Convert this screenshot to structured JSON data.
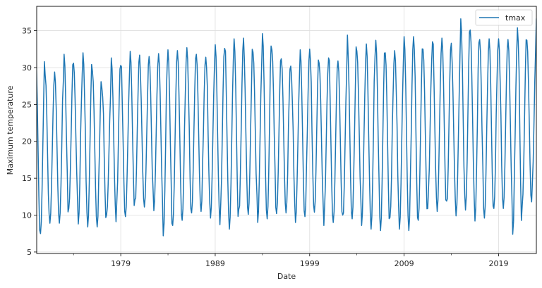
{
  "chart_data": {
    "type": "line",
    "title": "",
    "xlabel": "Date",
    "ylabel": "Maximum temperature",
    "xlim": [
      1970.1,
      2023.0
    ],
    "ylim": [
      4.8,
      38.3
    ],
    "grid": true,
    "legend_position": "upper right",
    "x_ticks": [
      1979,
      1989,
      1999,
      2009,
      2019
    ],
    "x_tick_labels": [
      "1979",
      "1989",
      "1999",
      "2009",
      "2019"
    ],
    "x_minor_ticks": [
      1974,
      1984,
      1994,
      2004,
      2014
    ],
    "y_ticks": [
      5,
      10,
      15,
      20,
      25,
      30,
      35
    ],
    "y_tick_labels": [
      "5",
      "10",
      "15",
      "20",
      "25",
      "30",
      "35"
    ],
    "series": [
      {
        "name": "tmax",
        "color": "#1f77b4",
        "frequency": "monthly",
        "years": [
          1970,
          1971,
          1972,
          1973,
          1974,
          1975,
          1976,
          1977,
          1978,
          1979,
          1980,
          1981,
          1982,
          1983,
          1984,
          1985,
          1986,
          1987,
          1988,
          1989,
          1990,
          1991,
          1992,
          1993,
          1994,
          1995,
          1996,
          1997,
          1998,
          1999,
          2000,
          2001,
          2002,
          2003,
          2004,
          2005,
          2006,
          2007,
          2008,
          2009,
          2010,
          2011,
          2012,
          2013,
          2014,
          2015,
          2016,
          2017,
          2018,
          2019,
          2020,
          2021,
          2022,
          2023
        ],
        "annual_peak": [
          31.2,
          29.0,
          29.4,
          31.8,
          30.6,
          32.0,
          29.5,
          27.3,
          31.3,
          30.3,
          32.2,
          30.5,
          31.5,
          31.9,
          32.4,
          32.3,
          32.7,
          31.8,
          31.4,
          33.1,
          32.6,
          33.9,
          32.8,
          32.1,
          34.6,
          32.4,
          31.2,
          30.2,
          32.4,
          32.5,
          30.6,
          31.3,
          30.9,
          33.2,
          32.2,
          33.2,
          33.7,
          32.0,
          32.3,
          34.2,
          34.2,
          32.5,
          33.5,
          34.0,
          32.1,
          36.6,
          35.1,
          33.8,
          33.9,
          33.9,
          33.8,
          35.4,
          33.7,
          36.6
        ],
        "annual_trough": [
          6.3,
          7.5,
          8.9,
          8.9,
          10.9,
          8.8,
          8.4,
          8.4,
          10.0,
          9.1,
          9.8,
          10.9,
          11.1,
          10.6,
          7.2,
          8.6,
          9.3,
          10.3,
          10.5,
          9.6,
          8.7,
          8.1,
          9.6,
          10.1,
          9.0,
          9.5,
          10.2,
          10.3,
          9.0,
          9.8,
          10.4,
          8.6,
          9.0,
          8.8,
          9.5,
          8.6,
          8.1,
          7.9,
          9.7,
          8.1,
          7.9,
          9.3,
          10.9,
          10.5,
          10.7,
          9.9,
          10.7,
          9.2,
          9.6,
          10.9,
          10.9,
          7.4,
          11.2,
          11.8
        ]
      }
    ]
  },
  "legend": {
    "label": "tmax",
    "color": "#1f77b4"
  },
  "axes": {
    "xlabel": "Date",
    "ylabel": "Maximum temperature"
  }
}
